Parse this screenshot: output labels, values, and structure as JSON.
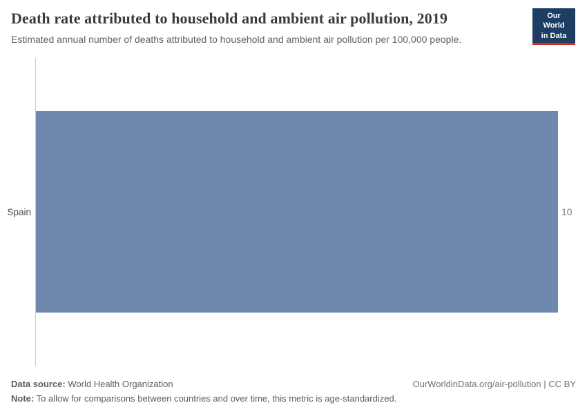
{
  "header": {
    "title": "Death rate attributed to household and ambient air pollution, 2019",
    "subtitle": "Estimated annual number of deaths attributed to household and ambient air pollution per 100,000 people.",
    "logo": {
      "line1": "Our World",
      "line2": "in Data",
      "bg_color": "#1d3d63",
      "accent_color": "#d42b21"
    }
  },
  "chart_data": {
    "type": "bar",
    "orientation": "horizontal",
    "title": "Death rate attributed to household and ambient air pollution, 2019",
    "subtitle": "Estimated annual number of deaths attributed to household and ambient air pollution per 100,000 people.",
    "categories": [
      "Spain"
    ],
    "values": [
      10
    ],
    "value_labels": [
      "10"
    ],
    "xlabel": "",
    "ylabel": "",
    "xlim": [
      0,
      10
    ],
    "grid": false,
    "legend": false,
    "bar_color": "#6f89ae",
    "axis_line_color": "#c9c9c9"
  },
  "footer": {
    "data_source_label": "Data source:",
    "data_source_value": "World Health Organization",
    "note_label": "Note:",
    "note_value": "To allow for comparisons between countries and over time, this metric is age-standardized.",
    "attribution": "OurWorldinData.org/air-pollution | CC BY"
  }
}
